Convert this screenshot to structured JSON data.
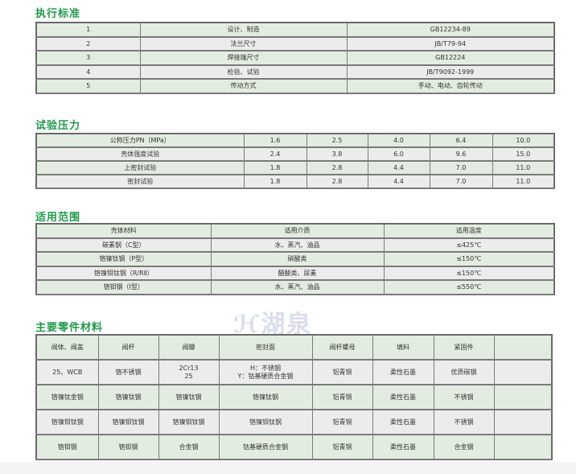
{
  "sections": {
    "standards": {
      "title": "执行标准",
      "rows": [
        [
          "1",
          "设计、制造",
          "GB12234-89"
        ],
        [
          "2",
          "法兰尺寸",
          "JB/T79-94"
        ],
        [
          "3",
          "焊接端尺寸",
          "GB12224"
        ],
        [
          "4",
          "检验、试验",
          "JB/T9092-1999"
        ],
        [
          "5",
          "传动方式",
          "手动、电动、齿轮传动"
        ]
      ]
    },
    "pressure": {
      "title": "试验压力",
      "rows": [
        [
          "公称压力PN（MPa）",
          "1.6",
          "2.5",
          "4.0",
          "6.4",
          "10.0"
        ],
        [
          "壳体强度试验",
          "2.4",
          "3.8",
          "6.0",
          "9.6",
          "15.0"
        ],
        [
          "上密封试验",
          "1.8",
          "2.8",
          "4.4",
          "7.0",
          "11.0"
        ],
        [
          "密封试验",
          "1.8",
          "2.8",
          "4.4",
          "7.0",
          "11.0"
        ]
      ]
    },
    "scope": {
      "title": "适用范围",
      "header": [
        "壳体材料",
        "适用介质",
        "适用温度"
      ],
      "rows": [
        [
          "碳素钢（C型）",
          "水、蒸汽、油品",
          "≤425℃"
        ],
        [
          "铬镍钛钢（P型）",
          "硝酸类",
          "≤150℃"
        ],
        [
          "铬镍钼钛钢（R/RⅡ）",
          "醋酸类、尿素",
          "≤150℃"
        ],
        [
          "铬钼钢（I型）",
          "水、蒸汽、油品",
          "≤550℃"
        ]
      ]
    },
    "materials": {
      "title": "主要零件材料",
      "header": [
        "阀体、阀盖",
        "阀杆",
        "阀瓣",
        "密封面",
        "阀杆螺母",
        "填料",
        "紧固件",
        ""
      ],
      "rows": [
        [
          "25、WCB",
          "铬不锈钢",
          "2Cr13\n25",
          "H：不锈钢\nY：钴基硬质合金钢",
          "铝青铜",
          "柔性石墨",
          "优质碳钢",
          ""
        ],
        [
          "铬镍钛金钢",
          "铬镍钛钢",
          "铬镍钛钢",
          "铬镍钛钢",
          "铝青铜",
          "柔性石墨",
          "不锈钢",
          ""
        ],
        [
          "铬镍钼钛钢",
          "铬镍钼钛钢",
          "铬镍钼钛钢",
          "铬镍钼钛钢",
          "铝青铜",
          "柔性石墨",
          "不锈钢",
          ""
        ],
        [
          "铬钼钢",
          "铬钼钢",
          "合金钢",
          "钴基硬质合金钢",
          "铝青铜",
          "柔性石墨",
          "合金钢",
          ""
        ]
      ]
    }
  },
  "watermark": "湖泉",
  "colors": {
    "title": "#1f9a4a",
    "row_green": "#e3ece0",
    "row_gray": "#ececec"
  }
}
